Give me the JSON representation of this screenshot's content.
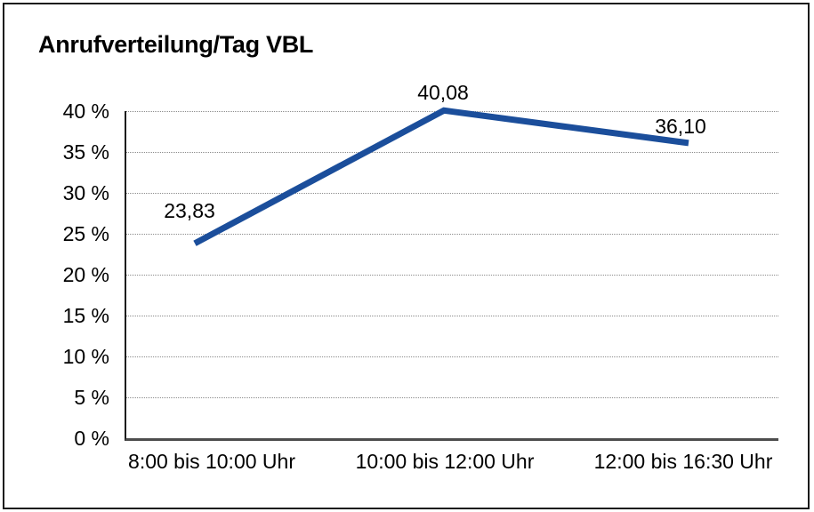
{
  "chart_data": {
    "type": "line",
    "title": "Anrufverteilung/Tag VBL",
    "categories": [
      "8:00 bis 10:00 Uhr",
      "10:00 bis 12:00 Uhr",
      "12:00 bis 16:30 Uhr"
    ],
    "values": [
      23.83,
      40.08,
      36.1
    ],
    "point_labels": [
      "23,83",
      "40,08",
      "36,10"
    ],
    "xlabel": "",
    "ylabel": "",
    "y_ticks": [
      "40 %",
      "35 %",
      "30 %",
      "25 %",
      "20 %",
      "15 %",
      "10 %",
      "5 %",
      "0 %"
    ],
    "ylim": [
      0,
      40
    ],
    "y_tick_step": 5,
    "grid": "horizontal-dotted",
    "legend": "none",
    "line_color": "#1b4e9b",
    "background_color": "#ffffff",
    "border_color": "#1a1a1a"
  }
}
